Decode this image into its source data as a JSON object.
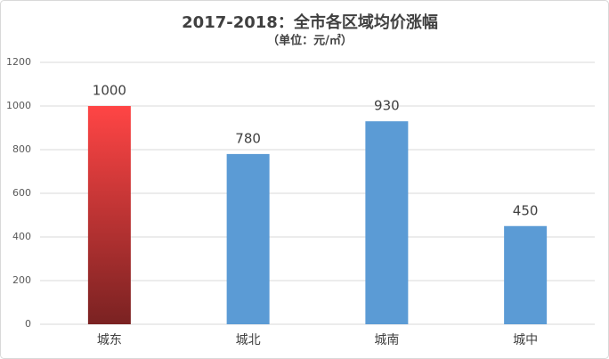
{
  "chart_data": {
    "type": "bar",
    "title": "2017-2018：全市各区域均价涨幅",
    "subtitle": "（单位：元/㎡）",
    "categories": [
      "城东",
      "城北",
      "城南",
      "城中"
    ],
    "values": [
      1000,
      780,
      930,
      450
    ],
    "colors": [
      [
        "#ff4545",
        "#7a2222"
      ],
      [
        "#5b9bd5",
        "#5b9bd5"
      ],
      [
        "#5b9bd5",
        "#5b9bd5"
      ],
      [
        "#5b9bd5",
        "#5b9bd5"
      ]
    ],
    "ylim": [
      0,
      1200
    ],
    "yticks": [
      0,
      200,
      400,
      600,
      800,
      1000,
      1200
    ],
    "grid": true,
    "data_labels": true
  }
}
